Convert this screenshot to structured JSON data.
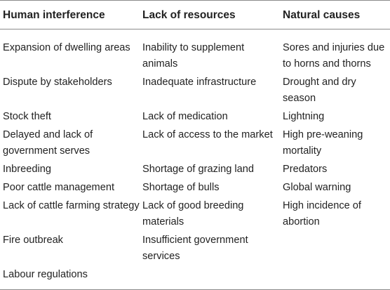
{
  "table": {
    "headers": [
      "Human interference",
      "Lack of resources",
      "Natural causes"
    ],
    "rows": [
      [
        "Expansion of dwelling areas",
        "Inability to supplement animals",
        "Sores and injuries due to horns and thorns"
      ],
      [
        "Dispute by stakeholders",
        "Inadequate infrastructure",
        "Drought and dry season"
      ],
      [
        "Stock theft",
        "Lack of medication",
        "Lightning"
      ],
      [
        "Delayed and lack of government serves",
        "Lack of access to the market",
        "High pre-weaning mortality"
      ],
      [
        "Inbreeding",
        "Shortage of grazing land",
        "Predators"
      ],
      [
        "Poor cattle management",
        "Shortage of bulls",
        "Global warning"
      ],
      [
        "Lack of cattle farming strategy",
        "Lack of good breeding materials",
        "High incidence of abortion"
      ],
      [
        "Fire outbreak",
        "Insufficient government services",
        ""
      ],
      [
        "Labour regulations",
        "",
        ""
      ]
    ]
  }
}
